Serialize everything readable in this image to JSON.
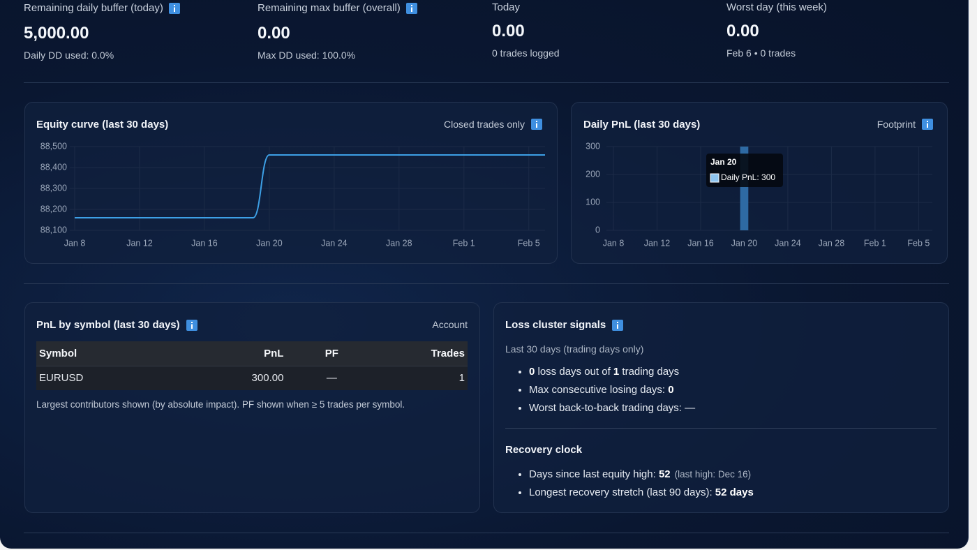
{
  "stats": [
    {
      "label": "Remaining daily buffer (today)",
      "value": "5,000.00",
      "sub": "Daily DD used: 0.0%"
    },
    {
      "label": "Remaining max buffer (overall)",
      "value": "0.00",
      "sub": "Max DD used: 100.0%"
    },
    {
      "label": "Today",
      "value": "0.00",
      "sub": "0 trades logged"
    },
    {
      "label": "Worst day (this week)",
      "value": "0.00",
      "sub": "Feb 6 • 0 trades"
    }
  ],
  "chart_data": [
    {
      "type": "line",
      "title": "Equity curve (last 30 days)",
      "subtitle": "Closed trades only",
      "color": "#3da0e6",
      "categories": [
        "Jan 8",
        null,
        null,
        null,
        "Jan 12",
        null,
        null,
        null,
        "Jan 16",
        null,
        null,
        null,
        "Jan 20",
        null,
        null,
        null,
        "Jan 24",
        null,
        null,
        null,
        "Jan 28",
        null,
        null,
        null,
        "Feb 1",
        null,
        null,
        null,
        "Feb 5",
        null
      ],
      "values": [
        88160,
        88160,
        88160,
        88160,
        88160,
        88160,
        88160,
        88160,
        88160,
        88160,
        88160,
        88160,
        88460,
        88460,
        88460,
        88460,
        88460,
        88460,
        88460,
        88460,
        88460,
        88460,
        88460,
        88460,
        88460,
        88460,
        88460,
        88460,
        88460,
        88460
      ],
      "ylim": [
        88100,
        88500
      ],
      "yticks": [
        {
          "value": 88100,
          "label": "88,100"
        },
        {
          "value": 88200,
          "label": "88,200"
        },
        {
          "value": 88300,
          "label": "88,300"
        },
        {
          "value": 88400,
          "label": "88,400"
        },
        {
          "value": 88500,
          "label": "88,500"
        }
      ],
      "grid": true
    },
    {
      "type": "bar",
      "title": "Daily PnL (last 30 days)",
      "subtitle": "Footprint",
      "color": "#2e6aa3",
      "categories": [
        "Jan 8",
        null,
        null,
        null,
        "Jan 12",
        null,
        null,
        null,
        "Jan 16",
        null,
        null,
        null,
        "Jan 20",
        null,
        null,
        null,
        "Jan 24",
        null,
        null,
        null,
        "Jan 28",
        null,
        null,
        null,
        "Feb 1",
        null,
        null,
        null,
        "Feb 5",
        null
      ],
      "values": [
        0,
        0,
        0,
        0,
        0,
        0,
        0,
        0,
        0,
        0,
        0,
        0,
        300,
        0,
        0,
        0,
        0,
        0,
        0,
        0,
        0,
        0,
        0,
        0,
        0,
        0,
        0,
        0,
        0,
        0
      ],
      "ylim": [
        0,
        300
      ],
      "yticks": [
        0,
        100,
        200,
        300
      ],
      "grid": true,
      "tooltip": {
        "title": "Jan 20",
        "text": "Daily PnL: 300",
        "color": "#8ec5f0"
      }
    }
  ],
  "symbol_table": {
    "title": "PnL by symbol (last 30 days)",
    "scope": "Account",
    "columns": [
      "Symbol",
      "PnL",
      "PF",
      "Trades"
    ],
    "rows": [
      [
        "EURUSD",
        "300.00",
        "—",
        "1"
      ]
    ],
    "note": "Largest contributors shown (by absolute impact). PF shown when ≥ 5 trades per symbol."
  },
  "loss_cluster": {
    "title": "Loss cluster signals",
    "subtitle": "Last 30 days (trading days only)",
    "items": [
      [
        {
          "t": "0",
          "style": "bold"
        },
        {
          "t": " loss days out of "
        },
        {
          "t": "1",
          "style": "bold"
        },
        {
          "t": " trading days"
        }
      ],
      [
        {
          "t": "Max consecutive losing days: "
        },
        {
          "t": "0",
          "style": "bold"
        }
      ],
      [
        {
          "t": "Worst back-to-back trading days: —"
        }
      ]
    ]
  },
  "recovery": {
    "title": "Recovery clock",
    "items": [
      [
        {
          "t": "Days since last equity high: "
        },
        {
          "t": "52",
          "style": "bold"
        },
        {
          "t": "(last high: Dec 16)",
          "style": "muted"
        }
      ],
      [
        {
          "t": "Longest recovery stretch (last 90 days): "
        },
        {
          "t": "52 days",
          "style": "bold"
        }
      ]
    ]
  }
}
